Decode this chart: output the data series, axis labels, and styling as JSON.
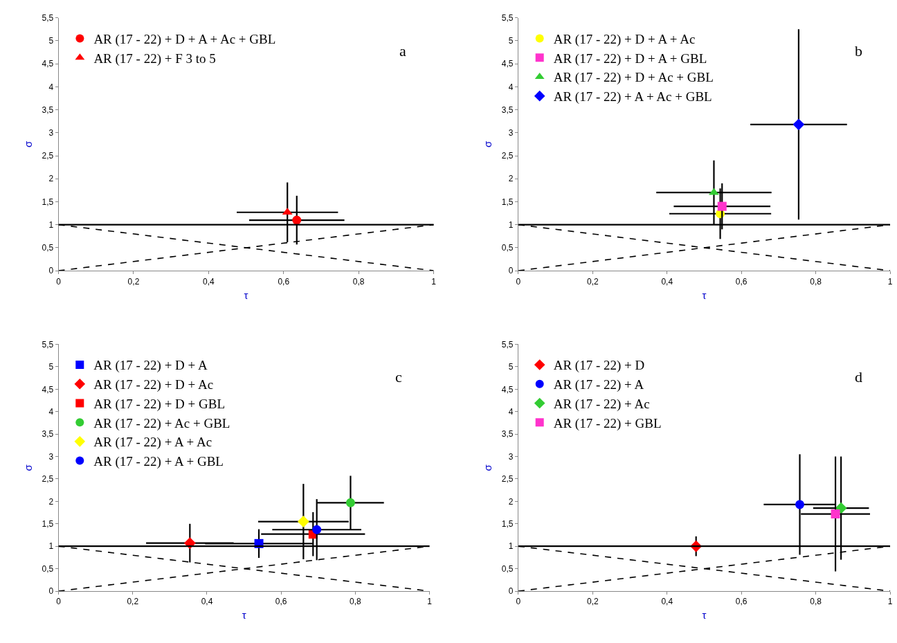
{
  "chart_data": [
    {
      "type": "scatter",
      "xlabel": "τ",
      "ylabel": "σ",
      "annotations": [
        "a"
      ],
      "legend": "top left",
      "xlim": [
        0,
        1
      ],
      "ylim": [
        0,
        5.5
      ],
      "xticks": [
        0,
        {
          "value": 0.2,
          "label": "0,2"
        },
        {
          "value": 0.4,
          "label": "0,4"
        },
        {
          "value": 0.6,
          "label": "0,6"
        },
        {
          "value": 0.8,
          "label": "0,8"
        },
        1
      ],
      "yticks": [
        0,
        {
          "value": 0.5,
          "label": "0,5"
        },
        1,
        {
          "value": 1.5,
          "label": "1,5"
        },
        2,
        {
          "value": 2.5,
          "label": "2,5"
        },
        3,
        {
          "value": 3.5,
          "label": "3,5"
        },
        4,
        {
          "value": 4.5,
          "label": "4,5"
        },
        5,
        {
          "value": 5.5,
          "label": "5,5"
        }
      ],
      "ref_lines": [
        {
          "axis": "y",
          "value": 1,
          "color": "#000000",
          "line_style": "solid"
        }
      ],
      "series": [
        {
          "name": "AR (17 - 22) + D + A + Ac + GBL",
          "color": "#ff0000",
          "marker": "circle",
          "x": [
            0.635
          ],
          "values": [
            1.1
          ],
          "errors": [
            0.53
          ],
          "xerrors": [
            0.127
          ]
        },
        {
          "name": "AR (17 - 22) + F 3 to 5",
          "color": "#ff0000",
          "marker": "triangle",
          "x": [
            0.61
          ],
          "values": [
            1.27
          ],
          "errors": [
            0.65
          ],
          "xerrors": [
            0.135
          ]
        },
        {
          "type": "line",
          "color": "#000000",
          "marker": "none",
          "line_style": "dashed",
          "x": [
            0,
            1
          ],
          "values": [
            1,
            0
          ]
        },
        {
          "type": "line",
          "color": "#000000",
          "marker": "none",
          "line_style": "dashed",
          "x": [
            0,
            1
          ],
          "values": [
            0,
            1
          ]
        }
      ]
    },
    {
      "type": "scatter",
      "xlabel": "τ",
      "ylabel": "σ",
      "annotations": [
        "b"
      ],
      "legend": "top left",
      "xlim": [
        0,
        1
      ],
      "ylim": [
        0,
        5.5
      ],
      "xticks": [
        0,
        {
          "value": 0.2,
          "label": "0,2"
        },
        {
          "value": 0.4,
          "label": "0,4"
        },
        {
          "value": 0.6,
          "label": "0,6"
        },
        {
          "value": 0.8,
          "label": "0,8"
        },
        1
      ],
      "yticks": [
        0,
        {
          "value": 0.5,
          "label": "0,5"
        },
        1,
        {
          "value": 1.5,
          "label": "1,5"
        },
        2,
        {
          "value": 2.5,
          "label": "2,5"
        },
        3,
        {
          "value": 3.5,
          "label": "3,5"
        },
        4,
        {
          "value": 4.5,
          "label": "4,5"
        },
        5,
        {
          "value": 5.5,
          "label": "5,5"
        }
      ],
      "ref_lines": [
        {
          "axis": "y",
          "value": 1,
          "color": "#000000",
          "line_style": "solid"
        }
      ],
      "series": [
        {
          "name": "AR (17 - 22) + D + A + Ac",
          "color": "#ffff00",
          "marker": "circle",
          "x": [
            0.543
          ],
          "values": [
            1.24
          ],
          "errors": [
            0.55
          ],
          "xerrors": [
            0.137
          ]
        },
        {
          "name": "AR (17 - 22) + D + A + GBL",
          "color": "#ff33cc",
          "marker": "square",
          "x": [
            0.548
          ],
          "values": [
            1.4
          ],
          "errors": [
            0.5
          ],
          "xerrors": [
            0.13
          ]
        },
        {
          "name": "AR (17 - 22) + D + Ac + GBL",
          "color": "#33cc33",
          "marker": "triangle",
          "x": [
            0.526
          ],
          "values": [
            1.7
          ],
          "errors": [
            0.7
          ],
          "xerrors": [
            0.155
          ]
        },
        {
          "name": "AR (17 - 22) + A + Ac + GBL",
          "color": "#0000ff",
          "marker": "diamond",
          "x": [
            0.754
          ],
          "values": [
            3.18
          ],
          "errors": [
            2.07
          ],
          "xerrors": [
            0.13
          ]
        },
        {
          "type": "line",
          "color": "#000000",
          "marker": "none",
          "line_style": "dashed",
          "x": [
            0,
            1
          ],
          "values": [
            1,
            0
          ]
        },
        {
          "type": "line",
          "color": "#000000",
          "marker": "none",
          "line_style": "dashed",
          "x": [
            0,
            1
          ],
          "values": [
            0,
            1
          ]
        }
      ]
    },
    {
      "type": "scatter",
      "xlabel": "τ",
      "ylabel": "σ",
      "annotations": [
        "c"
      ],
      "legend": "top left",
      "xlim": [
        0,
        1
      ],
      "ylim": [
        0,
        5.5
      ],
      "xticks": [
        0,
        {
          "value": 0.2,
          "label": "0,2"
        },
        {
          "value": 0.4,
          "label": "0,4"
        },
        {
          "value": 0.6,
          "label": "0,6"
        },
        {
          "value": 0.8,
          "label": "0,8"
        },
        1
      ],
      "yticks": [
        0,
        {
          "value": 0.5,
          "label": "0,5"
        },
        1,
        {
          "value": 1.5,
          "label": "1,5"
        },
        2,
        {
          "value": 2.5,
          "label": "2,5"
        },
        3,
        {
          "value": 3.5,
          "label": "3,5"
        },
        4,
        {
          "value": 4.5,
          "label": "4,5"
        },
        5,
        {
          "value": 5.5,
          "label": "5,5"
        }
      ],
      "ref_lines": [
        {
          "axis": "y",
          "value": 1,
          "color": "#000000",
          "line_style": "solid"
        }
      ],
      "series": [
        {
          "name": "AR (17 - 22) + D + A",
          "color": "#0000ff",
          "marker": "square",
          "x": [
            0.54
          ],
          "values": [
            1.06
          ],
          "errors": [
            0.32
          ],
          "xerrors": [
            0.145
          ]
        },
        {
          "name": "AR (17 - 22) + D + Ac",
          "color": "#ff0000",
          "marker": "diamond",
          "x": [
            0.354
          ],
          "values": [
            1.07
          ],
          "errors": [
            0.43
          ],
          "xerrors": [
            0.118
          ]
        },
        {
          "name": "AR (17 - 22) + D + GBL",
          "color": "#ff0000",
          "marker": "square",
          "x": [
            0.686
          ],
          "values": [
            1.27
          ],
          "errors": [
            0.49
          ],
          "xerrors": [
            0.14
          ]
        },
        {
          "name": "AR (17 - 22) + Ac + GBL",
          "color": "#33cc33",
          "marker": "circle",
          "x": [
            0.787
          ],
          "values": [
            1.97
          ],
          "errors": [
            0.6
          ],
          "xerrors": [
            0.09
          ]
        },
        {
          "name": "AR (17 - 22) + A + Ac",
          "color": "#ffff00",
          "marker": "diamond",
          "x": [
            0.66
          ],
          "values": [
            1.55
          ],
          "errors": [
            0.84
          ],
          "xerrors": [
            0.122
          ]
        },
        {
          "name": "AR (17 - 22) + A + GBL",
          "color": "#0000ff",
          "marker": "circle",
          "x": [
            0.696
          ],
          "values": [
            1.37
          ],
          "errors": [
            0.68
          ],
          "xerrors": [
            0.12
          ]
        },
        {
          "type": "line",
          "color": "#000000",
          "marker": "none",
          "line_style": "dashed",
          "x": [
            0,
            1
          ],
          "values": [
            1,
            0
          ]
        },
        {
          "type": "line",
          "color": "#000000",
          "marker": "none",
          "line_style": "dashed",
          "x": [
            0,
            1
          ],
          "values": [
            0,
            1
          ]
        }
      ]
    },
    {
      "type": "scatter",
      "xlabel": "τ",
      "ylabel": "σ",
      "annotations": [
        "d"
      ],
      "legend": "top left",
      "xlim": [
        0,
        1
      ],
      "ylim": [
        0,
        5.5
      ],
      "xticks": [
        0,
        {
          "value": 0.2,
          "label": "0,2"
        },
        {
          "value": 0.4,
          "label": "0,4"
        },
        {
          "value": 0.6,
          "label": "0,6"
        },
        {
          "value": 0.8,
          "label": "0,8"
        },
        1
      ],
      "yticks": [
        0,
        {
          "value": 0.5,
          "label": "0,5"
        },
        1,
        {
          "value": 1.5,
          "label": "1,5"
        },
        2,
        {
          "value": 2.5,
          "label": "2,5"
        },
        3,
        {
          "value": 3.5,
          "label": "3,5"
        },
        4,
        {
          "value": 4.5,
          "label": "4,5"
        },
        5,
        {
          "value": 5.5,
          "label": "5,5"
        }
      ],
      "ref_lines": [
        {
          "axis": "y",
          "value": 1,
          "color": "#000000",
          "line_style": "solid"
        }
      ],
      "series": [
        {
          "name": "AR (17 - 22) + D",
          "color": "#ff0000",
          "marker": "diamond",
          "x": [
            0.478
          ],
          "values": [
            1.0
          ],
          "errors": [
            0.22
          ]
        },
        {
          "name": "AR (17 - 22) + A",
          "color": "#0000ff",
          "marker": "circle",
          "x": [
            0.757
          ],
          "values": [
            1.93
          ],
          "errors": [
            1.12
          ],
          "xerrors": [
            0.097
          ]
        },
        {
          "name": "AR (17 - 22) + Ac",
          "color": "#33cc33",
          "marker": "diamond",
          "x": [
            0.868
          ],
          "values": [
            1.85
          ],
          "errors": [
            1.15
          ],
          "xerrors": [
            0.075
          ]
        },
        {
          "name": "AR (17 - 22) + GBL",
          "color": "#ff33cc",
          "marker": "square",
          "x": [
            0.853
          ],
          "values": [
            1.72
          ],
          "errors": [
            1.28
          ],
          "xerrors": [
            0.093
          ]
        },
        {
          "type": "line",
          "color": "#000000",
          "marker": "none",
          "line_style": "dashed",
          "x": [
            0,
            1
          ],
          "values": [
            1,
            0
          ]
        },
        {
          "type": "line",
          "color": "#000000",
          "marker": "none",
          "line_style": "dashed",
          "x": [
            0,
            1
          ],
          "values": [
            0,
            1
          ]
        }
      ]
    }
  ]
}
